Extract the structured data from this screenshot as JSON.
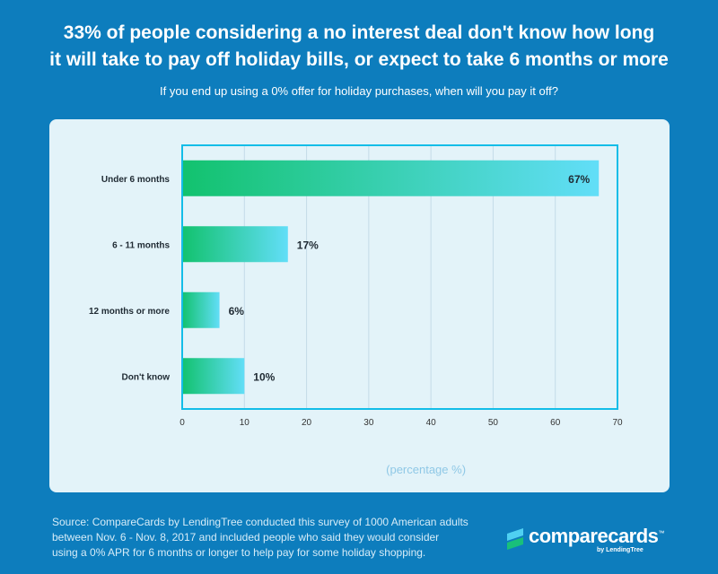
{
  "header": {
    "title_line1": "33% of people considering a no interest deal don't know how long",
    "title_line2": "it will take to pay off holiday bills, or expect to take 6 months or more",
    "subtitle": "If you end up using a 0% offer for holiday purchases, when will you pay it off?"
  },
  "chart_data": {
    "type": "bar",
    "orientation": "horizontal",
    "categories": [
      "Under 6 months",
      "6 - 11 months",
      "12 months or more",
      "Don't know"
    ],
    "values": [
      67,
      17,
      6,
      10
    ],
    "value_labels": [
      "67%",
      "17%",
      "6%",
      "10%"
    ],
    "xlabel": "(percentage %)",
    "xlim": [
      0,
      70
    ],
    "xticks": [
      0,
      10,
      20,
      30,
      40,
      50,
      60,
      70
    ],
    "grid": true,
    "colors": {
      "bar_start": "#12c26e",
      "bar_end": "#62def8",
      "frame": "#13bde8",
      "grid": "#c4dbe8",
      "axis_label": "#8fc8e6"
    }
  },
  "footer": {
    "line1": "Source: CompareCards by LendingTree conducted this survey of 1000 American adults",
    "line2": "between Nov. 6 - Nov. 8, 2017 and included people who said they would consider",
    "line3": "using a 0% APR for 6 months or longer to help pay for some holiday shopping."
  },
  "logo": {
    "name": "comparecards",
    "tm": "™",
    "tagline": "by LendingTree"
  }
}
